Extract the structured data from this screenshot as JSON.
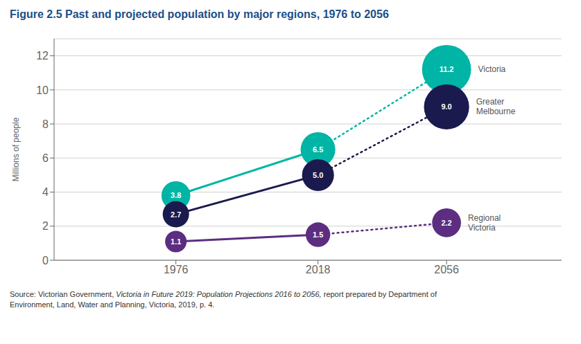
{
  "chart_data": {
    "type": "line",
    "title": "Figure 2.5   Past and projected population by major regions, 1976 to 2056",
    "ylabel": "Millions of people",
    "x": [
      1976,
      2018,
      2056
    ],
    "x_solid": [
      1976,
      2018
    ],
    "x_dotted": [
      2018,
      2056
    ],
    "xlim": [
      1940,
      2090
    ],
    "xticks": [
      1976,
      2018,
      2056
    ],
    "ylim": [
      0,
      13
    ],
    "yticks": [
      0,
      2,
      4,
      6,
      8,
      10,
      12
    ],
    "grid": true,
    "data_labels": true,
    "series": [
      {
        "name": "Victoria",
        "color": "#00b5a5",
        "values": [
          3.8,
          6.5,
          11.2
        ],
        "value_labels": [
          "3.8",
          "6.5",
          "11.2"
        ],
        "bubble_sizes": [
          900,
          1300,
          2600
        ]
      },
      {
        "name": "Greater\nMelbourne",
        "color": "#1a1a4e",
        "values": [
          2.7,
          5.0,
          9.0
        ],
        "value_labels": [
          "2.7",
          "5.0",
          "9.0"
        ],
        "bubble_sizes": [
          750,
          1100,
          2200
        ]
      },
      {
        "name": "Regional\nVictoria",
        "color": "#5c2d80",
        "values": [
          1.1,
          1.5,
          2.2
        ],
        "value_labels": [
          "1.1",
          "1.5",
          "2.2"
        ],
        "bubble_sizes": [
          500,
          650,
          900
        ]
      }
    ],
    "annotations": [
      "Source: Victorian Government, ",
      "Victoria in Future 2019: Population Projections 2016 to 2056,",
      " report prepared by Department of\nEnvironment, Land, Water and Planning, Victoria, 2019, p. 4."
    ]
  }
}
